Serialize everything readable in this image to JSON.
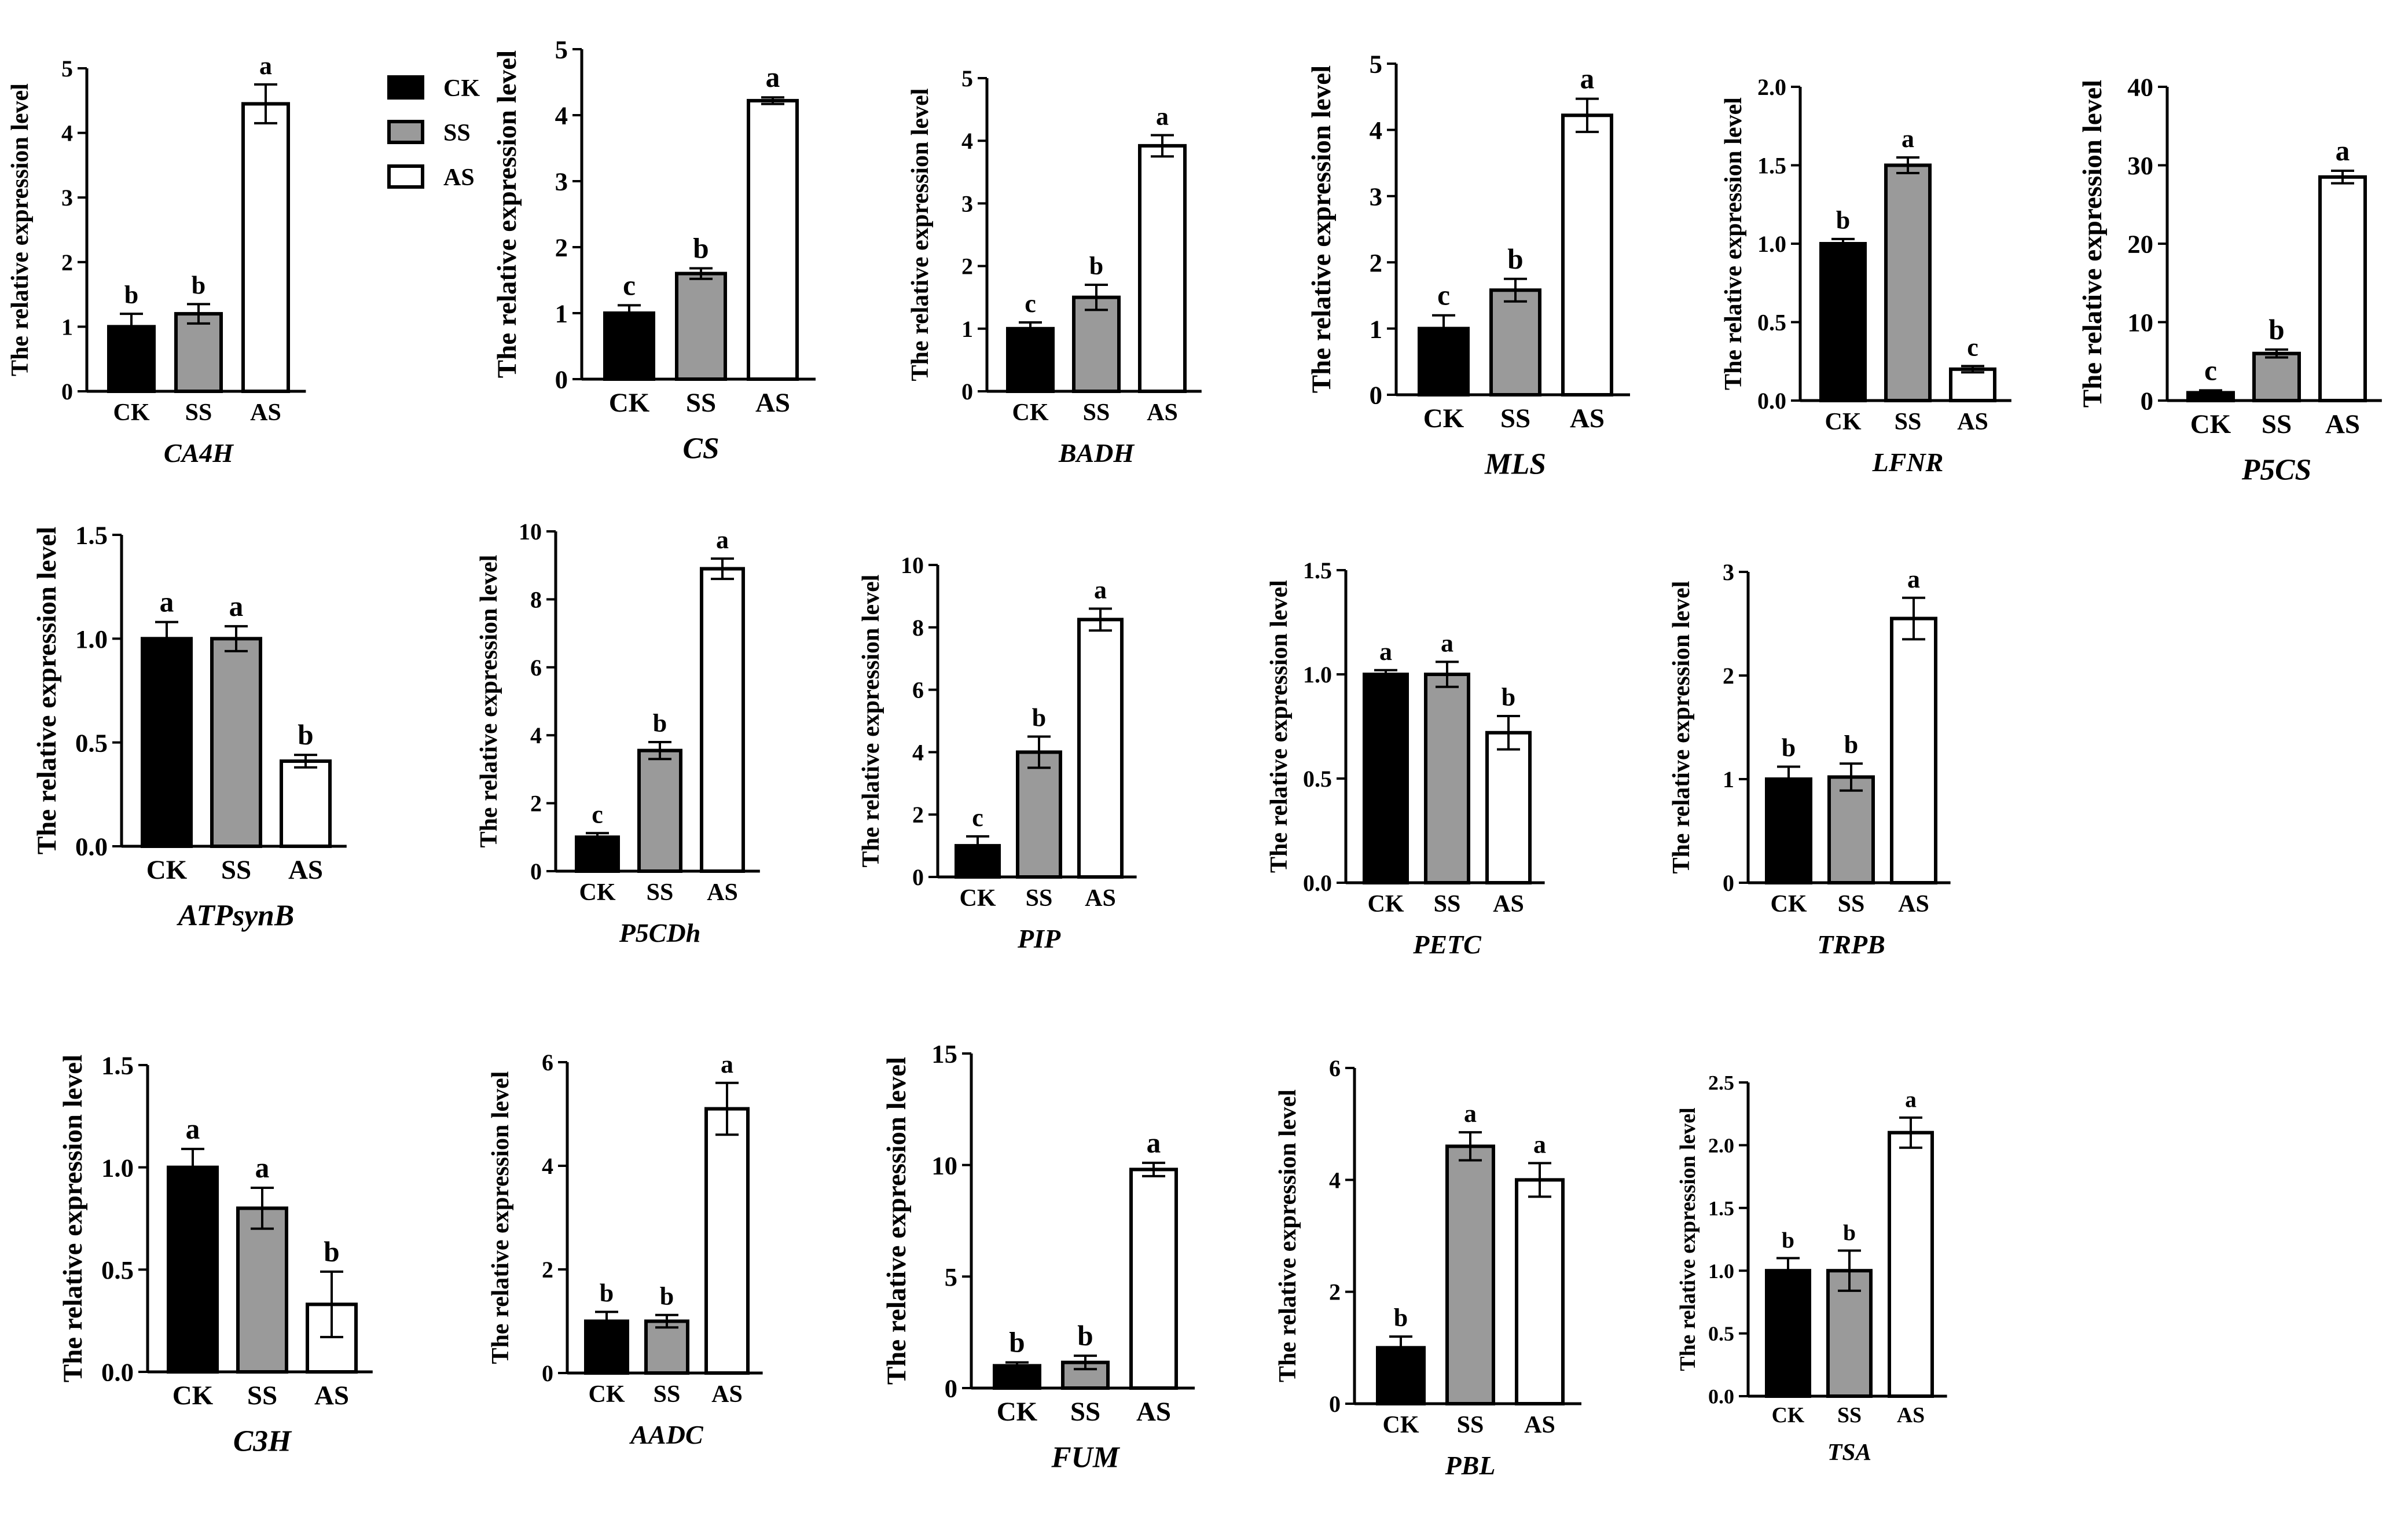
{
  "legend": {
    "items": [
      {
        "label": "CK",
        "color": "#000000"
      },
      {
        "label": "SS",
        "color": "#9a9a9a"
      },
      {
        "label": "AS",
        "color": "#ffffff"
      }
    ]
  },
  "chart_data": [
    {
      "type": "bar",
      "title": "CA4H",
      "ylabel": "The relative expression level",
      "categories": [
        "CK",
        "SS",
        "AS"
      ],
      "values": [
        1.0,
        1.2,
        4.45
      ],
      "errors": [
        0.2,
        0.15,
        0.3
      ],
      "significance": [
        "b",
        "b",
        "a"
      ],
      "ylim": [
        0,
        5
      ],
      "yticks": [
        "0",
        "1",
        "2",
        "3",
        "4",
        "5"
      ],
      "ytick_values": [
        0,
        1,
        2,
        3,
        4,
        5
      ]
    },
    {
      "type": "bar",
      "title": "CS",
      "ylabel": "The relative expression level",
      "categories": [
        "CK",
        "SS",
        "AS"
      ],
      "values": [
        1.0,
        1.6,
        4.22
      ],
      "errors": [
        0.12,
        0.08,
        0.05
      ],
      "significance": [
        "c",
        "b",
        "a"
      ],
      "ylim": [
        0,
        5
      ],
      "yticks": [
        "0",
        "1",
        "2",
        "3",
        "4",
        "5"
      ],
      "ytick_values": [
        0,
        1,
        2,
        3,
        4,
        5
      ]
    },
    {
      "type": "bar",
      "title": "BADH",
      "ylabel": "The relative expression level",
      "categories": [
        "CK",
        "SS",
        "AS"
      ],
      "values": [
        1.0,
        1.5,
        3.92
      ],
      "errors": [
        0.1,
        0.2,
        0.17
      ],
      "significance": [
        "c",
        "b",
        "a"
      ],
      "ylim": [
        0,
        5
      ],
      "yticks": [
        "0",
        "1",
        "2",
        "3",
        "4",
        "5"
      ],
      "ytick_values": [
        0,
        1,
        2,
        3,
        4,
        5
      ]
    },
    {
      "type": "bar",
      "title": "MLS",
      "ylabel": "The relative expression level",
      "categories": [
        "CK",
        "SS",
        "AS"
      ],
      "values": [
        1.0,
        1.58,
        4.22
      ],
      "errors": [
        0.2,
        0.17,
        0.25
      ],
      "significance": [
        "c",
        "b",
        "a"
      ],
      "ylim": [
        0,
        5
      ],
      "yticks": [
        "0",
        "1",
        "2",
        "3",
        "4",
        "5"
      ],
      "ytick_values": [
        0,
        1,
        2,
        3,
        4,
        5
      ]
    },
    {
      "type": "bar",
      "title": "LFNR",
      "ylabel": "The relative expression level",
      "categories": [
        "CK",
        "SS",
        "AS"
      ],
      "values": [
        1.0,
        1.5,
        0.2
      ],
      "errors": [
        0.03,
        0.05,
        0.02
      ],
      "significance": [
        "b",
        "a",
        "c"
      ],
      "ylim": [
        0,
        2
      ],
      "yticks": [
        "0.0",
        "0.5",
        "1.0",
        "1.5",
        "2.0"
      ],
      "ytick_values": [
        0,
        0.5,
        1,
        1.5,
        2
      ]
    },
    {
      "type": "bar",
      "title": "P5CS",
      "ylabel": "The relative expression level",
      "categories": [
        "CK",
        "SS",
        "AS"
      ],
      "values": [
        1.0,
        6.0,
        28.5
      ],
      "errors": [
        0.3,
        0.5,
        0.8
      ],
      "significance": [
        "c",
        "b",
        "a"
      ],
      "ylim": [
        0,
        40
      ],
      "yticks": [
        "0",
        "10",
        "20",
        "30",
        "40"
      ],
      "ytick_values": [
        0,
        10,
        20,
        30,
        40
      ]
    },
    {
      "type": "bar",
      "title": "ATPsynB",
      "ylabel": "The relative expression level",
      "categories": [
        "CK",
        "SS",
        "AS"
      ],
      "values": [
        1.0,
        1.0,
        0.41
      ],
      "errors": [
        0.08,
        0.06,
        0.03
      ],
      "significance": [
        "a",
        "a",
        "b"
      ],
      "ylim": [
        0,
        1.5
      ],
      "yticks": [
        "0.0",
        "0.5",
        "1.0",
        "1.5"
      ],
      "ytick_values": [
        0,
        0.5,
        1,
        1.5
      ]
    },
    {
      "type": "bar",
      "title": "P5CDh",
      "ylabel": "The relative expression level",
      "categories": [
        "CK",
        "SS",
        "AS"
      ],
      "values": [
        1.0,
        3.55,
        8.9
      ],
      "errors": [
        0.12,
        0.25,
        0.3
      ],
      "significance": [
        "c",
        "b",
        "a"
      ],
      "ylim": [
        0,
        10
      ],
      "yticks": [
        "0",
        "2",
        "4",
        "6",
        "8",
        "10"
      ],
      "ytick_values": [
        0,
        2,
        4,
        6,
        8,
        10
      ]
    },
    {
      "type": "bar",
      "title": "PIP",
      "ylabel": "The relative expression level",
      "categories": [
        "CK",
        "SS",
        "AS"
      ],
      "values": [
        1.0,
        4.0,
        8.25
      ],
      "errors": [
        0.3,
        0.5,
        0.35
      ],
      "significance": [
        "c",
        "b",
        "a"
      ],
      "ylim": [
        0,
        10
      ],
      "yticks": [
        "0",
        "2",
        "4",
        "6",
        "8",
        "10"
      ],
      "ytick_values": [
        0,
        2,
        4,
        6,
        8,
        10
      ]
    },
    {
      "type": "bar",
      "title": "PETC",
      "ylabel": "The relative expression level",
      "categories": [
        "CK",
        "SS",
        "AS"
      ],
      "values": [
        1.0,
        1.0,
        0.72
      ],
      "errors": [
        0.02,
        0.06,
        0.08
      ],
      "significance": [
        "a",
        "a",
        "b"
      ],
      "ylim": [
        0,
        1.5
      ],
      "yticks": [
        "0.0",
        "0.5",
        "1.0",
        "1.5"
      ],
      "ytick_values": [
        0,
        0.5,
        1,
        1.5
      ]
    },
    {
      "type": "bar",
      "title": "TRPB",
      "ylabel": "The relative expression level",
      "categories": [
        "CK",
        "SS",
        "AS"
      ],
      "values": [
        1.0,
        1.02,
        2.55
      ],
      "errors": [
        0.12,
        0.13,
        0.2
      ],
      "significance": [
        "b",
        "b",
        "a"
      ],
      "ylim": [
        0,
        3
      ],
      "yticks": [
        "0",
        "1",
        "2",
        "3"
      ],
      "ytick_values": [
        0,
        1,
        2,
        3
      ]
    },
    {
      "type": "bar",
      "title": "C3H",
      "ylabel": "The relative expression level",
      "categories": [
        "CK",
        "SS",
        "AS"
      ],
      "values": [
        1.0,
        0.8,
        0.33
      ],
      "errors": [
        0.09,
        0.1,
        0.16
      ],
      "significance": [
        "a",
        "a",
        "b"
      ],
      "ylim": [
        0,
        1.5
      ],
      "yticks": [
        "0.0",
        "0.5",
        "1.0",
        "1.5"
      ],
      "ytick_values": [
        0,
        0.5,
        1,
        1.5
      ]
    },
    {
      "type": "bar",
      "title": "AADC",
      "ylabel": "The relative expression level",
      "categories": [
        "CK",
        "SS",
        "AS"
      ],
      "values": [
        1.0,
        1.0,
        5.1
      ],
      "errors": [
        0.18,
        0.12,
        0.5
      ],
      "significance": [
        "b",
        "b",
        "a"
      ],
      "ylim": [
        0,
        6
      ],
      "yticks": [
        "0",
        "2",
        "4",
        "6"
      ],
      "ytick_values": [
        0,
        2,
        4,
        6
      ]
    },
    {
      "type": "bar",
      "title": "FUM",
      "ylabel": "The relative expression level",
      "categories": [
        "CK",
        "SS",
        "AS"
      ],
      "values": [
        1.0,
        1.15,
        9.8
      ],
      "errors": [
        0.15,
        0.3,
        0.3
      ],
      "significance": [
        "b",
        "b",
        "a"
      ],
      "ylim": [
        0,
        15
      ],
      "yticks": [
        "0",
        "5",
        "10",
        "15"
      ],
      "ytick_values": [
        0,
        5,
        10,
        15
      ]
    },
    {
      "type": "bar",
      "title": "PBL",
      "ylabel": "The relative expression level",
      "categories": [
        "CK",
        "SS",
        "AS"
      ],
      "values": [
        1.0,
        4.6,
        4.0
      ],
      "errors": [
        0.2,
        0.25,
        0.3
      ],
      "significance": [
        "b",
        "a",
        "a"
      ],
      "ylim": [
        0,
        6
      ],
      "yticks": [
        "0",
        "2",
        "4",
        "6"
      ],
      "ytick_values": [
        0,
        2,
        4,
        6
      ]
    },
    {
      "type": "bar",
      "title": "TSA",
      "ylabel": "The relative expression level",
      "categories": [
        "CK",
        "SS",
        "AS"
      ],
      "values": [
        1.0,
        1.0,
        2.1
      ],
      "errors": [
        0.1,
        0.16,
        0.12
      ],
      "significance": [
        "b",
        "b",
        "a"
      ],
      "ylim": [
        0,
        2.5
      ],
      "yticks": [
        "0.0",
        "0.5",
        "1.0",
        "1.5",
        "2.0",
        "2.5"
      ],
      "ytick_values": [
        0,
        0.5,
        1,
        1.5,
        2,
        2.5
      ]
    }
  ]
}
